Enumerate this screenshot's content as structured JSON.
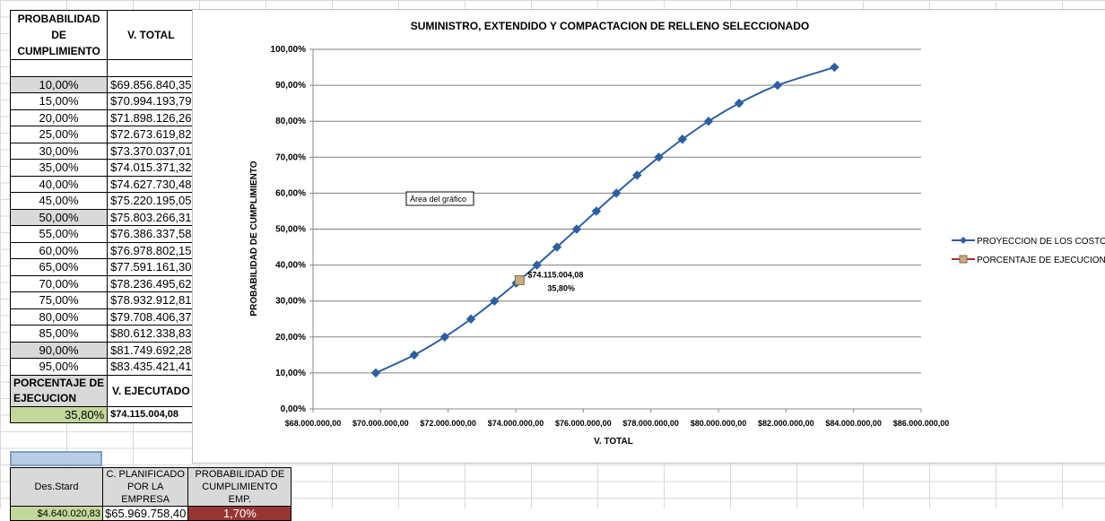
{
  "table": {
    "header_prob": "PROBABILIDAD DE CUMPLIMIENTO",
    "header_prob_lines": [
      "PROBABILIDAD",
      "DE",
      "CUMPLIMIENTO"
    ],
    "header_total": "V. TOTAL",
    "rows": [
      {
        "pct": "10,00%",
        "val": "$69.856.840,35"
      },
      {
        "pct": "15,00%",
        "val": "$70.994.193,79"
      },
      {
        "pct": "20,00%",
        "val": "$71.898.126,26"
      },
      {
        "pct": "25,00%",
        "val": "$72.673.619,82"
      },
      {
        "pct": "30,00%",
        "val": "$73.370.037,01"
      },
      {
        "pct": "35,00%",
        "val": "$74.015.371,32"
      },
      {
        "pct": "40,00%",
        "val": "$74.627.730,48"
      },
      {
        "pct": "45,00%",
        "val": "$75.220.195,05"
      },
      {
        "pct": "50,00%",
        "val": "$75.803.266,31"
      },
      {
        "pct": "55,00%",
        "val": "$76.386.337,58"
      },
      {
        "pct": "60,00%",
        "val": "$76.978.802,15"
      },
      {
        "pct": "65,00%",
        "val": "$77.591.161,30"
      },
      {
        "pct": "70,00%",
        "val": "$78.236.495,62"
      },
      {
        "pct": "75,00%",
        "val": "$78.932.912,81"
      },
      {
        "pct": "80,00%",
        "val": "$79.708.406,37"
      },
      {
        "pct": "85,00%",
        "val": "$80.612.338,83"
      },
      {
        "pct": "90,00%",
        "val": "$81.749.692,28"
      },
      {
        "pct": "95,00%",
        "val": "$83.435.421,41"
      }
    ],
    "gray_rows": [
      0,
      8,
      16
    ],
    "porcentaje_label": "PORCENTAJE DE EJECUCION",
    "porcentaje_label_lines": [
      "PORCENTAJE DE",
      "EJECUCION"
    ],
    "ejecutado_label": "V. EJECUTADO",
    "porcentaje_value": "35,80%",
    "ejecutado_value": "$74.115.004,08"
  },
  "bottom": {
    "desv_label": "Des.Stard",
    "planificado_label_lines": [
      "C. PLANIFICADO",
      "POR LA EMPRESA"
    ],
    "prob_emp_label_lines": [
      "PROBABILIDAD DE",
      "CUMPLIMIENTO EMP."
    ],
    "desv_value": "$4.640.020,83",
    "planificado_value": "$65.969.758,40",
    "prob_emp_value": "1,70%"
  },
  "chart_data": {
    "type": "line",
    "title": "SUMINISTRO, EXTENDIDO Y COMPACTACION DE RELLENO SELECCIONADO",
    "xlabel": "V. TOTAL",
    "ylabel": "PROBABILIDAD  DE  CUMPLIMIENTO",
    "xlim": [
      68000000,
      86000000
    ],
    "ylim": [
      0,
      100
    ],
    "x_ticks": [
      68000000,
      70000000,
      72000000,
      74000000,
      76000000,
      78000000,
      80000000,
      82000000,
      84000000,
      86000000
    ],
    "x_tick_labels": [
      "$68.000.000,00",
      "$70.000.000,00",
      "$72.000.000,00",
      "$74.000.000,00",
      "$76.000.000,00",
      "$78.000.000,00",
      "$80.000.000,00",
      "$82.000.000,00",
      "$84.000.000,00",
      "$86.000.000,00"
    ],
    "y_ticks": [
      0,
      10,
      20,
      30,
      40,
      50,
      60,
      70,
      80,
      90,
      100
    ],
    "y_tick_labels": [
      "0,00%",
      "10,00%",
      "20,00%",
      "30,00%",
      "40,00%",
      "50,00%",
      "60,00%",
      "70,00%",
      "80,00%",
      "90,00%",
      "100,00%"
    ],
    "grid": true,
    "legend_position": "right",
    "series": [
      {
        "name": "PROYECCION DE LOS COSTOS",
        "color": "#2e5fa0",
        "marker": "diamond",
        "x": [
          69856840.35,
          70994193.79,
          71898126.26,
          72673619.82,
          73370037.01,
          74015371.32,
          74627730.48,
          75220195.05,
          75803266.31,
          76386337.58,
          76978802.15,
          77591161.3,
          78236495.62,
          78932912.81,
          79708406.37,
          80612338.83,
          81749692.28,
          83435421.41
        ],
        "y": [
          10,
          15,
          20,
          25,
          30,
          35,
          40,
          45,
          50,
          55,
          60,
          65,
          70,
          75,
          80,
          85,
          90,
          95
        ]
      },
      {
        "name": "PORCENTAJE DE EJECUCION",
        "color": "#a0322e",
        "marker_fill": "#c4ad82",
        "marker": "square",
        "x": [
          74115004.08
        ],
        "y": [
          35.8
        ],
        "data_label_lines": [
          "$74.115.004,08",
          "35,80%"
        ]
      }
    ],
    "tooltip": "Área del gráfico"
  }
}
